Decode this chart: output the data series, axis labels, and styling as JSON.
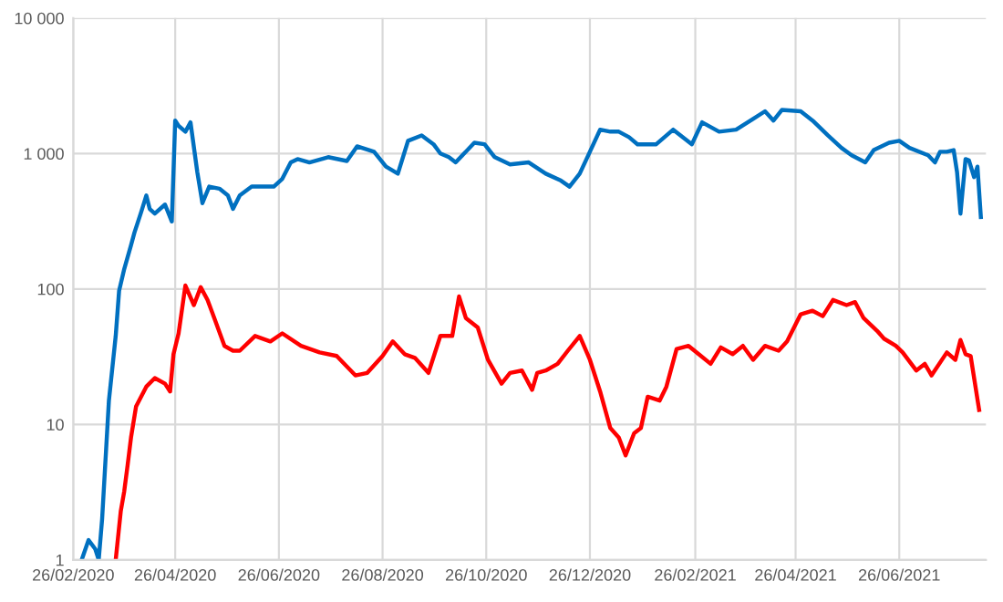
{
  "chart_data": {
    "type": "line",
    "log": "y",
    "grid": true,
    "marker": "none",
    "line_style": "solid",
    "xlim": [
      "2020-02-26",
      "2021-08-16"
    ],
    "ylim": [
      1,
      10000
    ],
    "xticks": [
      {
        "value": "2020-02-26",
        "label": "26/02/2020"
      },
      {
        "value": "2020-04-26",
        "label": "26/04/2020"
      },
      {
        "value": "2020-06-26",
        "label": "26/06/2020"
      },
      {
        "value": "2020-08-26",
        "label": "26/08/2020"
      },
      {
        "value": "2020-10-26",
        "label": "26/10/2020"
      },
      {
        "value": "2020-12-26",
        "label": "26/12/2020"
      },
      {
        "value": "2021-02-26",
        "label": "26/02/2021"
      },
      {
        "value": "2021-04-26",
        "label": "26/04/2021"
      },
      {
        "value": "2021-06-26",
        "label": "26/06/2021"
      }
    ],
    "yticks": [
      1,
      10,
      100,
      {
        "value": 1000,
        "label": "1 000"
      },
      {
        "value": 10000,
        "label": "10 000"
      }
    ],
    "series": [
      {
        "color": "#0070c0",
        "x": [
          "2020-03-02",
          "2020-03-06",
          "2020-03-10",
          "2020-03-12",
          "2020-03-14",
          "2020-03-18",
          "2020-03-22",
          "2020-03-24",
          "2020-03-27",
          "2020-03-31",
          "2020-04-02",
          "2020-04-06",
          "2020-04-09",
          "2020-04-11",
          "2020-04-14",
          "2020-04-20",
          "2020-04-24",
          "2020-04-26",
          "2020-04-28",
          "2020-05-02",
          "2020-05-05",
          "2020-05-09",
          "2020-05-12",
          "2020-05-16",
          "2020-05-22",
          "2020-05-27",
          "2020-05-30",
          "2020-06-03",
          "2020-06-10",
          "2020-06-17",
          "2020-06-23",
          "2020-06-28",
          "2020-07-03",
          "2020-07-07",
          "2020-07-14",
          "2020-07-25",
          "2020-08-05",
          "2020-08-11",
          "2020-08-21",
          "2020-08-28",
          "2020-09-04",
          "2020-09-10",
          "2020-09-18",
          "2020-09-25",
          "2020-09-29",
          "2020-10-04",
          "2020-10-08",
          "2020-10-19",
          "2020-10-25",
          "2020-10-31",
          "2020-11-09",
          "2020-11-20",
          "2020-11-30",
          "2020-12-09",
          "2020-12-14",
          "2020-12-20",
          "2020-12-24",
          "2021-01-01",
          "2021-01-07",
          "2021-01-12",
          "2021-01-18",
          "2021-01-23",
          "2021-02-03",
          "2021-02-13",
          "2021-02-24",
          "2021-03-02",
          "2021-03-12",
          "2021-03-22",
          "2021-04-01",
          "2021-04-08",
          "2021-04-13",
          "2021-04-18",
          "2021-04-29",
          "2021-05-06",
          "2021-05-15",
          "2021-05-23",
          "2021-05-29",
          "2021-06-06",
          "2021-06-11",
          "2021-06-20",
          "2021-06-26",
          "2021-07-02",
          "2021-07-13",
          "2021-07-17",
          "2021-07-20",
          "2021-07-24",
          "2021-07-28",
          "2021-07-30",
          "2021-08-01",
          "2021-08-04",
          "2021-08-06",
          "2021-08-09",
          "2021-08-11",
          "2021-08-13"
        ],
        "values": [
          1.0,
          1.4,
          1.2,
          1.0,
          2.0,
          15,
          45,
          97,
          140,
          210,
          260,
          370,
          490,
          390,
          360,
          420,
          315,
          1750,
          1600,
          1450,
          1700,
          730,
          430,
          570,
          550,
          490,
          390,
          490,
          570,
          570,
          570,
          650,
          860,
          910,
          860,
          940,
          880,
          1130,
          1030,
          800,
          710,
          1240,
          1360,
          1170,
          1000,
          940,
          860,
          1200,
          1170,
          940,
          830,
          860,
          710,
          630,
          570,
          710,
          910,
          1500,
          1450,
          1450,
          1320,
          1170,
          1170,
          1500,
          1170,
          1700,
          1450,
          1500,
          1800,
          2050,
          1750,
          2100,
          2050,
          1750,
          1360,
          1100,
          970,
          860,
          1060,
          1200,
          1240,
          1100,
          970,
          860,
          1030,
          1030,
          1060,
          730,
          360,
          910,
          890,
          670,
          800,
          340
        ]
      },
      {
        "color": "#ff0000",
        "x": [
          "2020-03-22",
          "2020-03-25",
          "2020-03-27",
          "2020-03-29",
          "2020-03-31",
          "2020-04-03",
          "2020-04-09",
          "2020-04-14",
          "2020-04-20",
          "2020-04-23",
          "2020-04-25",
          "2020-04-28",
          "2020-05-02",
          "2020-05-07",
          "2020-05-11",
          "2020-05-15",
          "2020-05-19",
          "2020-05-25",
          "2020-05-30",
          "2020-06-03",
          "2020-06-12",
          "2020-06-21",
          "2020-06-28",
          "2020-07-09",
          "2020-07-20",
          "2020-07-30",
          "2020-08-10",
          "2020-08-17",
          "2020-08-26",
          "2020-09-01",
          "2020-09-08",
          "2020-09-14",
          "2020-09-22",
          "2020-09-29",
          "2020-10-06",
          "2020-10-10",
          "2020-10-14",
          "2020-10-21",
          "2020-10-27",
          "2020-11-04",
          "2020-11-09",
          "2020-11-16",
          "2020-11-22",
          "2020-11-25",
          "2020-11-30",
          "2020-12-07",
          "2020-12-13",
          "2020-12-20",
          "2020-12-26",
          "2021-01-01",
          "2021-01-07",
          "2021-01-12",
          "2021-01-16",
          "2021-01-21",
          "2021-01-25",
          "2021-01-29",
          "2021-02-05",
          "2021-02-09",
          "2021-02-15",
          "2021-02-22",
          "2021-02-28",
          "2021-03-07",
          "2021-03-13",
          "2021-03-20",
          "2021-03-26",
          "2021-04-01",
          "2021-04-08",
          "2021-04-16",
          "2021-04-21",
          "2021-04-29",
          "2021-05-06",
          "2021-05-12",
          "2021-05-18",
          "2021-05-26",
          "2021-05-31",
          "2021-06-05",
          "2021-06-13",
          "2021-06-17",
          "2021-06-24",
          "2021-06-28",
          "2021-07-06",
          "2021-07-11",
          "2021-07-15",
          "2021-07-24",
          "2021-07-29",
          "2021-08-01",
          "2021-08-04",
          "2021-08-07",
          "2021-08-12"
        ],
        "values": [
          1.0,
          2.3,
          3.2,
          5.0,
          8.0,
          13.6,
          19,
          22,
          20,
          17.5,
          33,
          47,
          106,
          76,
          103,
          83,
          61,
          38,
          35,
          35,
          45,
          41,
          47,
          38,
          34,
          32,
          23,
          24,
          32,
          41,
          33,
          31,
          24,
          45,
          45,
          88,
          61,
          52,
          30,
          20,
          24,
          25,
          18,
          24,
          25,
          28,
          35,
          45,
          30,
          17.5,
          9.4,
          8.0,
          5.9,
          8.6,
          9.4,
          16,
          15,
          19,
          36,
          38,
          33,
          28,
          37,
          33,
          38,
          30,
          38,
          35,
          41,
          65,
          69,
          63,
          83,
          76,
          80,
          61,
          49,
          43,
          38,
          34,
          25,
          28,
          23,
          34,
          30,
          42,
          33,
          32,
          12.8
        ]
      }
    ]
  }
}
